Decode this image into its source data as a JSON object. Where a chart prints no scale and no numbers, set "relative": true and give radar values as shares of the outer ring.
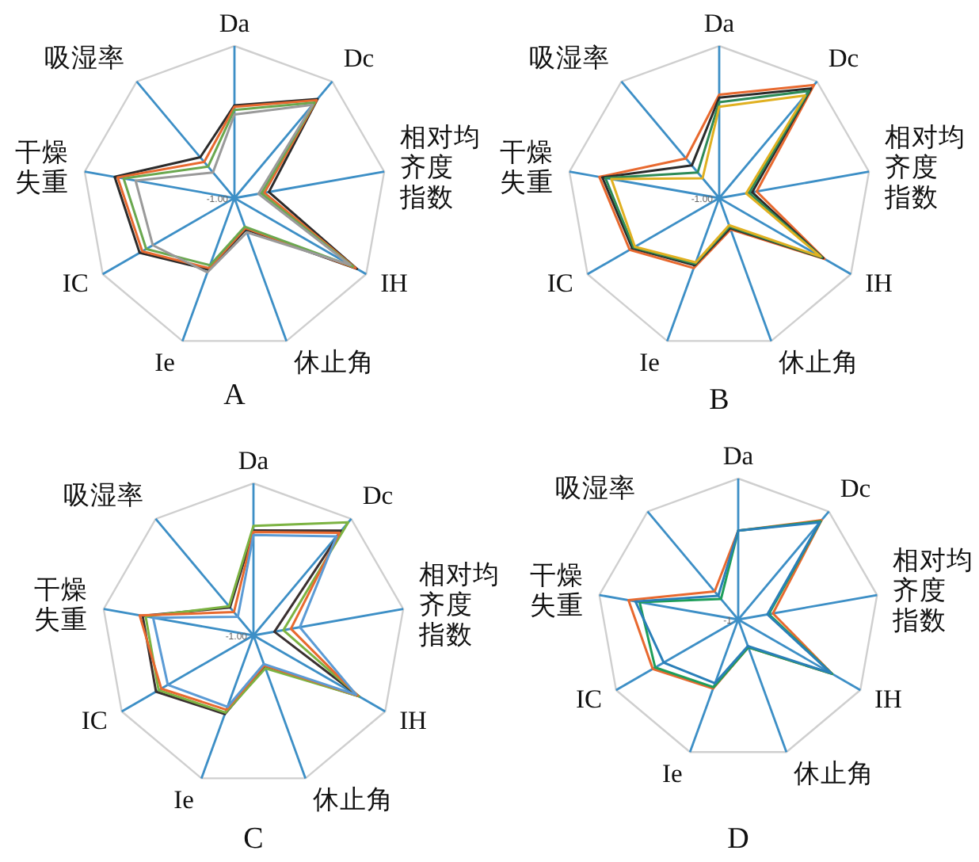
{
  "chart_data": [
    {
      "type": "radar",
      "title": "A",
      "relative": true,
      "annotations": [
        "-1.00"
      ],
      "categories": [
        "Da",
        "Dc",
        "相对均齐度指数",
        "IH",
        "休止角",
        "Ie",
        "IC",
        "干燥失重",
        "吸湿率"
      ],
      "series": [
        {
          "color": "#2b2b2b",
          "values": [
            0.61,
            0.85,
            0.23,
            0.93,
            0.22,
            0.5,
            0.72,
            0.8,
            0.35
          ]
        },
        {
          "color": "#e8692f",
          "values": [
            0.6,
            0.84,
            0.2,
            0.92,
            0.21,
            0.49,
            0.7,
            0.78,
            0.31
          ]
        },
        {
          "color": "#6aa84f",
          "values": [
            0.58,
            0.82,
            0.18,
            0.9,
            0.2,
            0.47,
            0.67,
            0.74,
            0.27
          ]
        },
        {
          "color": "#9a9a9a",
          "values": [
            0.55,
            0.8,
            0.16,
            0.88,
            0.24,
            0.52,
            0.62,
            0.66,
            0.22
          ]
        }
      ]
    },
    {
      "type": "radar",
      "title": "B",
      "relative": true,
      "annotations": [
        "-1.00"
      ],
      "categories": [
        "Da",
        "Dc",
        "相对均齐度指数",
        "IH",
        "休止角",
        "Ie",
        "IC",
        "干燥失重",
        "吸湿率"
      ],
      "series": [
        {
          "color": "#e8692f",
          "values": [
            0.68,
            0.97,
            0.25,
            0.8,
            0.22,
            0.49,
            0.68,
            0.8,
            0.34
          ]
        },
        {
          "color": "#2b2b2b",
          "values": [
            0.66,
            0.94,
            0.22,
            0.79,
            0.21,
            0.47,
            0.66,
            0.78,
            0.28
          ]
        },
        {
          "color": "#2e8b57",
          "values": [
            0.63,
            0.92,
            0.2,
            0.78,
            0.2,
            0.46,
            0.65,
            0.76,
            0.22
          ]
        },
        {
          "color": "#e0b020",
          "values": [
            0.6,
            0.88,
            0.18,
            0.77,
            0.19,
            0.45,
            0.64,
            0.72,
            0.17
          ]
        }
      ]
    },
    {
      "type": "radar",
      "title": "C",
      "relative": true,
      "annotations": [
        "-1.00"
      ],
      "categories": [
        "Da",
        "Dc",
        "相对均齐度指数",
        "IH",
        "休止角",
        "Ie",
        "IC",
        "干燥失重",
        "吸湿率"
      ],
      "series": [
        {
          "color": "#3a3030",
          "values": [
            0.69,
            0.9,
            0.14,
            0.8,
            0.22,
            0.55,
            0.74,
            0.74,
            0.24
          ]
        },
        {
          "color": "#7cb342",
          "values": [
            0.72,
            0.97,
            0.2,
            0.8,
            0.23,
            0.54,
            0.72,
            0.72,
            0.25
          ]
        },
        {
          "color": "#e8692f",
          "values": [
            0.68,
            0.88,
            0.25,
            0.79,
            0.21,
            0.52,
            0.7,
            0.76,
            0.2
          ]
        },
        {
          "color": "#5b9bd5",
          "values": [
            0.66,
            0.85,
            0.31,
            0.78,
            0.2,
            0.5,
            0.65,
            0.67,
            0.16
          ]
        }
      ]
    },
    {
      "type": "radar",
      "title": "D",
      "relative": true,
      "annotations": [
        "-1"
      ],
      "categories": [
        "Da",
        "Dc",
        "相对均齐度指数",
        "IH",
        "休止角",
        "Ie",
        "IC",
        "干燥失重",
        "吸湿率"
      ],
      "series": [
        {
          "color": "#e8692f",
          "values": [
            0.63,
            0.92,
            0.25,
            0.77,
            0.21,
            0.52,
            0.7,
            0.79,
            0.26
          ]
        },
        {
          "color": "#1e9e5a",
          "values": [
            0.63,
            0.91,
            0.22,
            0.77,
            0.21,
            0.51,
            0.68,
            0.71,
            0.19
          ]
        },
        {
          "color": "#2a7fb8",
          "values": [
            0.63,
            0.9,
            0.21,
            0.76,
            0.2,
            0.48,
            0.61,
            0.74,
            0.22
          ]
        }
      ]
    }
  ]
}
